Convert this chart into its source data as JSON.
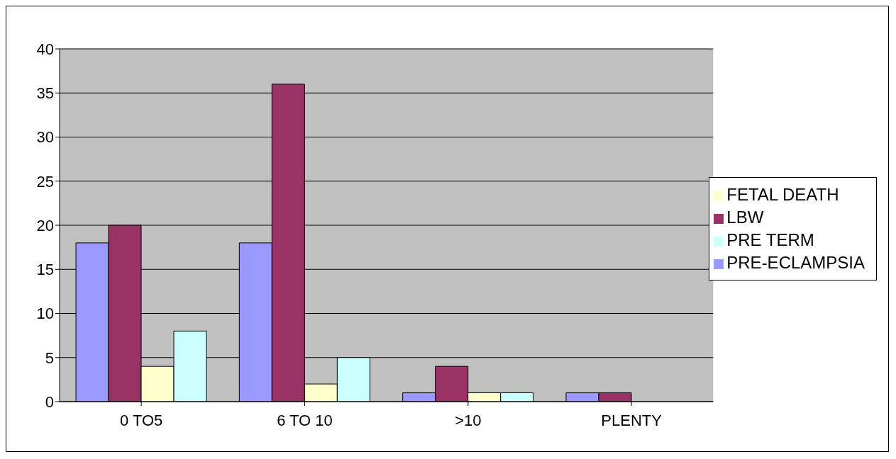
{
  "chart_data": {
    "type": "bar",
    "categories": [
      "0 TO5",
      "6 TO 10",
      ">10",
      "PLENTY"
    ],
    "series": [
      {
        "name": "PRE-ECLAMPSIA",
        "color": "#9999ff",
        "values": [
          18,
          18,
          1,
          1
        ]
      },
      {
        "name": "LBW",
        "color": "#993366",
        "values": [
          20,
          36,
          4,
          1
        ]
      },
      {
        "name": "FETAL DEATH",
        "color": "#ffffcc",
        "values": [
          4,
          2,
          1,
          0
        ]
      },
      {
        "name": "PRE TERM",
        "color": "#ccffff",
        "values": [
          8,
          5,
          1,
          0
        ]
      }
    ],
    "ylim": [
      0,
      40
    ],
    "yticks": [
      0,
      5,
      10,
      15,
      20,
      25,
      30,
      35,
      40
    ],
    "grid": "y",
    "legend": "right"
  }
}
